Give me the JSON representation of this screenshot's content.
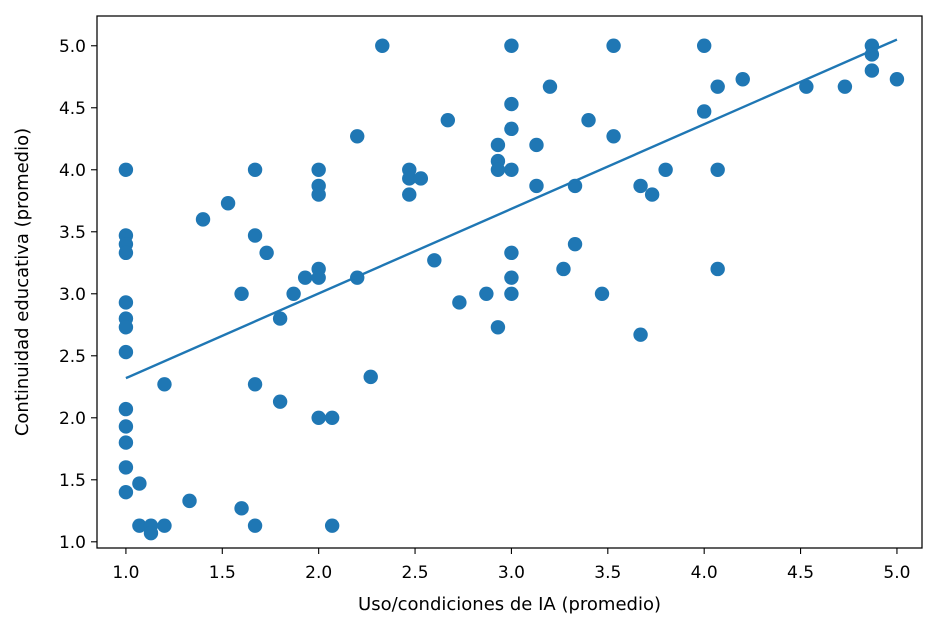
{
  "chart_data": {
    "type": "scatter",
    "title": "",
    "xlabel": "Uso/condiciones de IA (promedio)",
    "ylabel": "Continuidad educativa (promedio)",
    "xlim": [
      0.85,
      5.13
    ],
    "ylim": [
      0.95,
      5.24
    ],
    "xticks": [
      "1.0",
      "1.5",
      "2.0",
      "2.5",
      "3.0",
      "3.5",
      "4.0",
      "4.5",
      "5.0"
    ],
    "yticks": [
      "1.0",
      "1.5",
      "2.0",
      "2.5",
      "3.0",
      "3.5",
      "4.0",
      "4.5",
      "5.0"
    ],
    "grid": false,
    "legend": "none",
    "colors": {
      "points": "#1f77b4",
      "trend_line": "#1f77b4"
    },
    "points": [
      {
        "x": 1.0,
        "y": 4.0
      },
      {
        "x": 1.0,
        "y": 3.47
      },
      {
        "x": 1.0,
        "y": 3.4
      },
      {
        "x": 1.0,
        "y": 3.33
      },
      {
        "x": 1.0,
        "y": 2.93
      },
      {
        "x": 1.0,
        "y": 2.8
      },
      {
        "x": 1.0,
        "y": 2.73
      },
      {
        "x": 1.0,
        "y": 2.53
      },
      {
        "x": 1.0,
        "y": 2.07
      },
      {
        "x": 1.0,
        "y": 1.93
      },
      {
        "x": 1.0,
        "y": 1.8
      },
      {
        "x": 1.0,
        "y": 1.6
      },
      {
        "x": 1.0,
        "y": 1.4
      },
      {
        "x": 1.07,
        "y": 1.47
      },
      {
        "x": 1.07,
        "y": 1.13
      },
      {
        "x": 1.13,
        "y": 1.13
      },
      {
        "x": 1.13,
        "y": 1.07
      },
      {
        "x": 1.2,
        "y": 2.27
      },
      {
        "x": 1.2,
        "y": 1.13
      },
      {
        "x": 1.33,
        "y": 1.33
      },
      {
        "x": 1.4,
        "y": 3.6
      },
      {
        "x": 1.53,
        "y": 3.73
      },
      {
        "x": 1.6,
        "y": 3.0
      },
      {
        "x": 1.6,
        "y": 1.27
      },
      {
        "x": 1.67,
        "y": 4.0
      },
      {
        "x": 1.67,
        "y": 3.47
      },
      {
        "x": 1.67,
        "y": 2.27
      },
      {
        "x": 1.67,
        "y": 1.13
      },
      {
        "x": 1.73,
        "y": 3.33
      },
      {
        "x": 1.8,
        "y": 2.8
      },
      {
        "x": 1.8,
        "y": 2.13
      },
      {
        "x": 1.87,
        "y": 3.0
      },
      {
        "x": 1.93,
        "y": 3.13
      },
      {
        "x": 2.0,
        "y": 4.0
      },
      {
        "x": 2.0,
        "y": 3.87
      },
      {
        "x": 2.0,
        "y": 3.8
      },
      {
        "x": 2.0,
        "y": 3.2
      },
      {
        "x": 2.0,
        "y": 3.13
      },
      {
        "x": 2.0,
        "y": 2.0
      },
      {
        "x": 2.07,
        "y": 2.0
      },
      {
        "x": 2.07,
        "y": 1.13
      },
      {
        "x": 2.2,
        "y": 4.27
      },
      {
        "x": 2.2,
        "y": 3.13
      },
      {
        "x": 2.27,
        "y": 2.33
      },
      {
        "x": 2.33,
        "y": 5.0
      },
      {
        "x": 2.47,
        "y": 4.0
      },
      {
        "x": 2.47,
        "y": 3.93
      },
      {
        "x": 2.47,
        "y": 3.8
      },
      {
        "x": 2.53,
        "y": 3.93
      },
      {
        "x": 2.6,
        "y": 3.27
      },
      {
        "x": 2.67,
        "y": 4.4
      },
      {
        "x": 2.73,
        "y": 2.93
      },
      {
        "x": 2.87,
        "y": 3.0
      },
      {
        "x": 2.93,
        "y": 4.2
      },
      {
        "x": 2.93,
        "y": 4.07
      },
      {
        "x": 2.93,
        "y": 4.0
      },
      {
        "x": 2.93,
        "y": 2.73
      },
      {
        "x": 3.0,
        "y": 5.0
      },
      {
        "x": 3.0,
        "y": 4.53
      },
      {
        "x": 3.0,
        "y": 4.33
      },
      {
        "x": 3.0,
        "y": 4.0
      },
      {
        "x": 3.0,
        "y": 3.33
      },
      {
        "x": 3.0,
        "y": 3.13
      },
      {
        "x": 3.0,
        "y": 3.0
      },
      {
        "x": 3.13,
        "y": 4.2
      },
      {
        "x": 3.13,
        "y": 3.87
      },
      {
        "x": 3.2,
        "y": 4.67
      },
      {
        "x": 3.27,
        "y": 3.2
      },
      {
        "x": 3.33,
        "y": 3.87
      },
      {
        "x": 3.33,
        "y": 3.4
      },
      {
        "x": 3.4,
        "y": 4.4
      },
      {
        "x": 3.47,
        "y": 3.0
      },
      {
        "x": 3.53,
        "y": 5.0
      },
      {
        "x": 3.53,
        "y": 4.27
      },
      {
        "x": 3.67,
        "y": 3.87
      },
      {
        "x": 3.67,
        "y": 2.67
      },
      {
        "x": 3.73,
        "y": 3.8
      },
      {
        "x": 3.8,
        "y": 4.0
      },
      {
        "x": 4.0,
        "y": 5.0
      },
      {
        "x": 4.0,
        "y": 4.47
      },
      {
        "x": 4.07,
        "y": 4.67
      },
      {
        "x": 4.07,
        "y": 4.0
      },
      {
        "x": 4.07,
        "y": 3.2
      },
      {
        "x": 4.2,
        "y": 4.73
      },
      {
        "x": 4.53,
        "y": 4.67
      },
      {
        "x": 4.73,
        "y": 4.67
      },
      {
        "x": 4.87,
        "y": 5.0
      },
      {
        "x": 4.87,
        "y": 4.93
      },
      {
        "x": 4.87,
        "y": 4.8
      },
      {
        "x": 5.0,
        "y": 4.73
      }
    ],
    "trend_line": [
      {
        "x": 1.0,
        "y": 2.32
      },
      {
        "x": 5.0,
        "y": 5.05
      }
    ]
  }
}
